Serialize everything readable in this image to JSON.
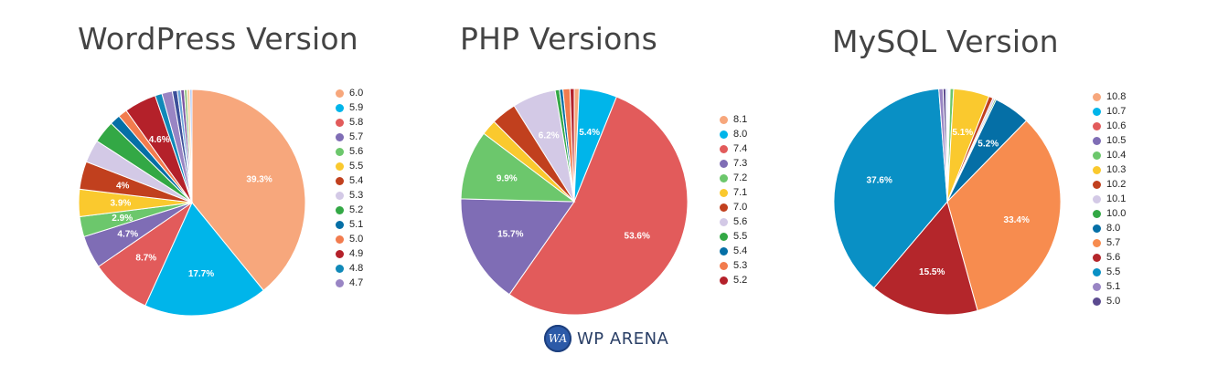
{
  "chart_data": [
    {
      "type": "pie",
      "title": "WordPress Version",
      "slices": [
        {
          "label": "6.0",
          "value": 39.3,
          "color": "#f7a77c",
          "data_label": "39.3%"
        },
        {
          "label": "5.9",
          "value": 17.7,
          "color": "#00b5ea",
          "data_label": "17.7%"
        },
        {
          "label": "5.8",
          "value": 8.7,
          "color": "#e25b5b",
          "data_label": "8.7%"
        },
        {
          "label": "5.7",
          "value": 4.7,
          "color": "#7f6db5",
          "data_label": "4.7%"
        },
        {
          "label": "5.6",
          "value": 2.9,
          "color": "#6cc76c",
          "data_label": "2.9%"
        },
        {
          "label": "5.5",
          "value": 3.9,
          "color": "#fac92e",
          "data_label": "3.9%"
        },
        {
          "label": "5.4",
          "value": 4.0,
          "color": "#c1401e",
          "data_label": "4%"
        },
        {
          "label": "5.3",
          "value": 3.3,
          "color": "#d3c9e6",
          "data_label": ""
        },
        {
          "label": "5.2",
          "value": 3.2,
          "color": "#33a845",
          "data_label": ""
        },
        {
          "label": "5.1",
          "value": 1.5,
          "color": "#056fa6",
          "data_label": ""
        },
        {
          "label": "5.0",
          "value": 1.3,
          "color": "#f27c4e",
          "data_label": ""
        },
        {
          "label": "4.9",
          "value": 4.6,
          "color": "#b4212a",
          "data_label": "4.6%"
        },
        {
          "label": "4.8",
          "value": 1.0,
          "color": "#1089b8",
          "data_label": ""
        },
        {
          "label": "4.7",
          "value": 1.5,
          "color": "#9985c4",
          "data_label": ""
        },
        {
          "label": "",
          "value": 0.7,
          "color": "#3b4e99",
          "data_label": ""
        },
        {
          "label": "",
          "value": 0.5,
          "color": "#6ba4d8",
          "data_label": ""
        },
        {
          "label": "",
          "value": 0.5,
          "color": "#7e57a3",
          "data_label": ""
        },
        {
          "label": "",
          "value": 0.4,
          "color": "#93c47d",
          "data_label": ""
        },
        {
          "label": "",
          "value": 0.4,
          "color": "#f9cb9c",
          "data_label": ""
        },
        {
          "label": "",
          "value": 0.3,
          "color": "#a4c2f4",
          "data_label": ""
        }
      ]
    },
    {
      "type": "pie",
      "title": "PHP Versions",
      "slices": [
        {
          "label": "8.1",
          "value": 0.7,
          "color": "#f7a77c",
          "data_label": ""
        },
        {
          "label": "8.0",
          "value": 5.4,
          "color": "#00b5ea",
          "data_label": "5.4%"
        },
        {
          "label": "7.4",
          "value": 53.6,
          "color": "#e25b5b",
          "data_label": "53.6%"
        },
        {
          "label": "7.3",
          "value": 15.7,
          "color": "#7f6db5",
          "data_label": "15.7%"
        },
        {
          "label": "7.2",
          "value": 9.9,
          "color": "#6cc76c",
          "data_label": "9.9%"
        },
        {
          "label": "7.1",
          "value": 2.2,
          "color": "#fac92e",
          "data_label": ""
        },
        {
          "label": "7.0",
          "value": 3.6,
          "color": "#c1401e",
          "data_label": ""
        },
        {
          "label": "5.6",
          "value": 6.2,
          "color": "#d3c9e6",
          "data_label": "6.2%"
        },
        {
          "label": "5.5",
          "value": 0.6,
          "color": "#33a845",
          "data_label": ""
        },
        {
          "label": "5.4",
          "value": 0.5,
          "color": "#056fa6",
          "data_label": ""
        },
        {
          "label": "5.3",
          "value": 1.0,
          "color": "#f27c4e",
          "data_label": ""
        },
        {
          "label": "5.2",
          "value": 0.6,
          "color": "#b4212a",
          "data_label": ""
        }
      ]
    },
    {
      "type": "pie",
      "title": "MySQL Version",
      "slices": [
        {
          "label": "10.8",
          "value": 0.1,
          "color": "#f7a77c",
          "data_label": ""
        },
        {
          "label": "10.7",
          "value": 0.1,
          "color": "#00b5ea",
          "data_label": ""
        },
        {
          "label": "10.6",
          "value": 0.1,
          "color": "#e25b5b",
          "data_label": ""
        },
        {
          "label": "10.5",
          "value": 0.1,
          "color": "#7f6db5",
          "data_label": ""
        },
        {
          "label": "10.4",
          "value": 0.5,
          "color": "#6cc76c",
          "data_label": ""
        },
        {
          "label": "10.3",
          "value": 5.1,
          "color": "#fac92e",
          "data_label": "5.1%"
        },
        {
          "label": "10.2",
          "value": 0.6,
          "color": "#c1401e",
          "data_label": ""
        },
        {
          "label": "10.1",
          "value": 0.3,
          "color": "#d3c9e6",
          "data_label": ""
        },
        {
          "label": "10.0",
          "value": 0.2,
          "color": "#33a845",
          "data_label": ""
        },
        {
          "label": "8.0",
          "value": 5.2,
          "color": "#056fa6",
          "data_label": "5.2%"
        },
        {
          "label": "5.7",
          "value": 33.4,
          "color": "#f78c4f",
          "data_label": "33.4%"
        },
        {
          "label": "5.6",
          "value": 15.5,
          "color": "#b4262b",
          "data_label": "15.5%"
        },
        {
          "label": "5.5",
          "value": 37.6,
          "color": "#0990c5",
          "data_label": "37.6%"
        },
        {
          "label": "5.1",
          "value": 0.6,
          "color": "#9985c4",
          "data_label": ""
        },
        {
          "label": "5.0",
          "value": 0.4,
          "color": "#5b4a8f",
          "data_label": ""
        },
        {
          "label": "",
          "value": 0.2,
          "color": "#a4c2f4",
          "data_label": ""
        }
      ]
    }
  ],
  "brand": {
    "icon_text": "WA",
    "name": "WP ARENA",
    "color": "#2c5aa8"
  }
}
